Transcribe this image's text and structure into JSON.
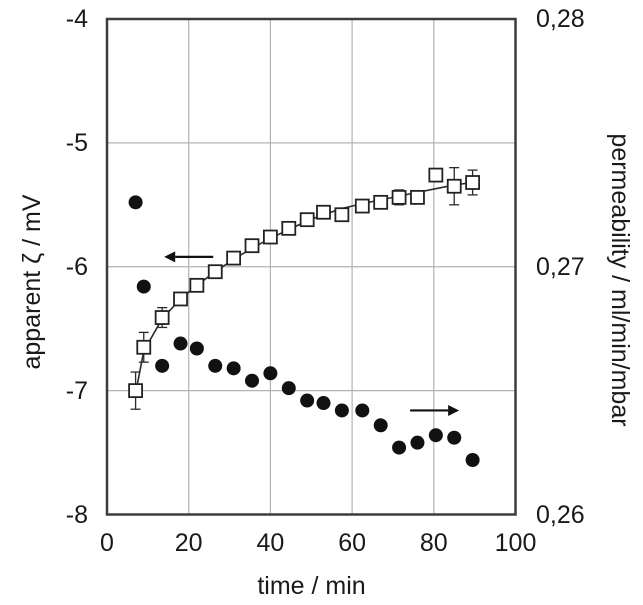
{
  "figure": {
    "background": "#ffffff",
    "frame_color": "#3c3c3c",
    "grid_color": "#b3b3b3",
    "marker_color": "#111111",
    "curve_color": "#2a2a2a",
    "text_color": "#1a1a1a"
  },
  "chart_data": {
    "type": "scatter",
    "grid": true,
    "x_axis": {
      "label": "time / min",
      "min": 0,
      "max": 100,
      "tick_values": [
        0,
        20,
        40,
        60,
        80,
        100
      ],
      "tick_labels": [
        "0",
        "20",
        "40",
        "60",
        "80",
        "100"
      ]
    },
    "y_left": {
      "label": "apparent ζ / mV",
      "min": -8,
      "max": -4,
      "tick_values": [
        -4,
        -5,
        -6,
        -7,
        -8
      ],
      "tick_labels": [
        "-4",
        "-5",
        "-6",
        "-7",
        "-8"
      ],
      "gridline_values": [
        -5,
        -6,
        -7
      ]
    },
    "y_right": {
      "label": "permeability / ml/min/mbar",
      "min": 0.26,
      "max": 0.28,
      "tick_values": [
        0.28,
        0.27,
        0.26
      ],
      "tick_labels": [
        "0,28",
        "0,27",
        "0,26"
      ]
    },
    "series": [
      {
        "name": "apparent-zeta",
        "axis": "left",
        "marker": "open-square",
        "x": [
          7,
          9,
          13.5,
          18,
          22,
          26.5,
          31,
          35.5,
          40,
          44.5,
          49,
          53,
          57.5,
          62.5,
          67,
          71.5,
          76,
          80.5,
          85,
          89.5
        ],
        "y": [
          -7.0,
          -6.65,
          -6.41,
          -6.26,
          -6.15,
          -6.04,
          -5.93,
          -5.83,
          -5.76,
          -5.69,
          -5.62,
          -5.56,
          -5.58,
          -5.51,
          -5.48,
          -5.44,
          -5.44,
          -5.26,
          -5.35,
          -5.32
        ],
        "yerr": [
          0.15,
          0.12,
          0.08,
          0.05,
          0.04,
          0.04,
          0.03,
          0.03,
          0.03,
          0.03,
          0.04,
          0.03,
          0.04,
          0.03,
          0.03,
          0.06,
          0.04,
          0.05,
          0.15,
          0.1
        ]
      },
      {
        "name": "permeability",
        "axis": "right",
        "marker": "filled-circle",
        "x": [
          7,
          9,
          13.5,
          18,
          22,
          26.5,
          31,
          35.5,
          40,
          44.5,
          49,
          53,
          57.5,
          62.5,
          67,
          71.5,
          76,
          80.5,
          85,
          89.5
        ],
        "y": [
          0.2726,
          0.2692,
          0.266,
          0.2669,
          0.2667,
          0.266,
          0.2659,
          0.2654,
          0.2657,
          0.2651,
          0.2646,
          0.2645,
          0.2642,
          0.2642,
          0.2636,
          0.2627,
          0.2629,
          0.2632,
          0.2631,
          0.2622
        ]
      }
    ],
    "fit_curve": {
      "axis": "left",
      "x": [
        7,
        9,
        13.5,
        18,
        22,
        26.5,
        31,
        35.5,
        40,
        44.5,
        49,
        53,
        57.5,
        62.5,
        67,
        71.5,
        76,
        80.5,
        85,
        89.5
      ],
      "y": [
        -7.02,
        -6.68,
        -6.42,
        -6.26,
        -6.15,
        -6.04,
        -5.94,
        -5.85,
        -5.77,
        -5.7,
        -5.63,
        -5.58,
        -5.53,
        -5.49,
        -5.46,
        -5.43,
        -5.4,
        -5.37,
        -5.34,
        -5.32
      ]
    },
    "annotations": [
      {
        "type": "arrow",
        "name": "left-arrow",
        "axis": "left",
        "x_tail": 26.0,
        "x_tip": 14.0,
        "y": -5.92
      },
      {
        "type": "arrow",
        "name": "right-arrow",
        "axis": "right",
        "x_tail": 74.2,
        "x_tip": 86.2,
        "y": 0.2642
      }
    ]
  }
}
